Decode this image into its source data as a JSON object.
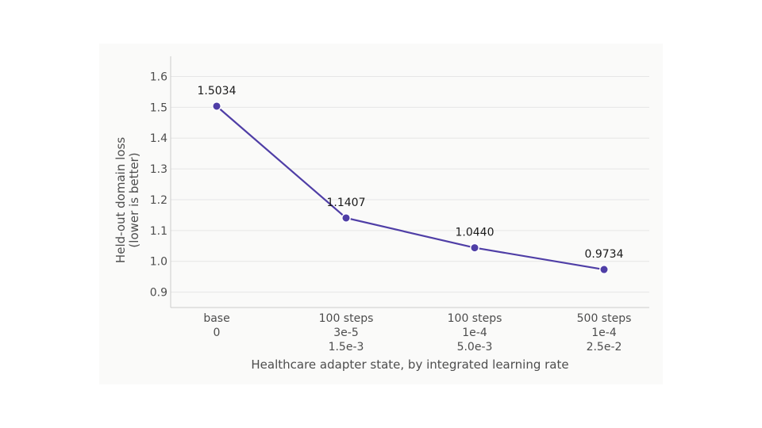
{
  "chart_data": {
    "type": "line",
    "title": "",
    "xlabel": "Healthcare adapter state, by integrated learning rate",
    "ylabel_lines": [
      "Held-out domain loss",
      "(lower is better)"
    ],
    "categories": [
      [
        "base",
        "0"
      ],
      [
        "100 steps",
        "3e-5",
        "1.5e-3"
      ],
      [
        "100 steps",
        "1e-4",
        "5.0e-3"
      ],
      [
        "500 steps",
        "1e-4",
        "2.5e-2"
      ]
    ],
    "values": [
      1.5034,
      1.1407,
      1.044,
      0.9734
    ],
    "data_labels": [
      "1.5034",
      "1.1407",
      "1.0440",
      "0.9734"
    ],
    "yticks": [
      "0.9",
      "1.0",
      "1.1",
      "1.2",
      "1.3",
      "1.4",
      "1.5",
      "1.6"
    ],
    "ylim": [
      0.85,
      1.65
    ],
    "grid": true,
    "color": "#4f3ea6"
  }
}
